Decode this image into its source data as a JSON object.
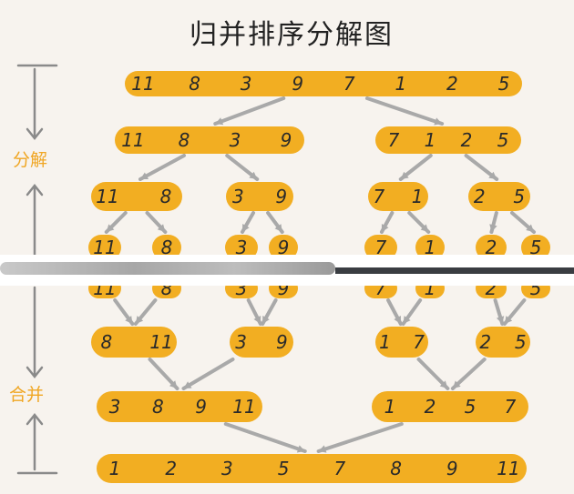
{
  "title": "归并排序分解图",
  "phases": {
    "split": "分解",
    "merge": "合并"
  },
  "colors": {
    "pill": "#f2ae22",
    "arrow": "#a9a9a9",
    "axis": "#8a8a8a",
    "background": "#f7f3ee",
    "phase_label": "#f0a623"
  },
  "levels": [
    {
      "nodes": [
        [
          "11",
          "8",
          "3",
          "9",
          "7",
          "1",
          "2",
          "5"
        ]
      ]
    },
    {
      "nodes": [
        [
          "11",
          "8",
          "3",
          "9"
        ],
        [
          "7",
          "1",
          "2",
          "5"
        ]
      ]
    },
    {
      "nodes": [
        [
          "11",
          "8"
        ],
        [
          "3",
          "9"
        ],
        [
          "7",
          "1"
        ],
        [
          "2",
          "5"
        ]
      ]
    },
    {
      "nodes": [
        [
          "11"
        ],
        [
          "8"
        ],
        [
          "3"
        ],
        [
          "9"
        ],
        [
          "7"
        ],
        [
          "1"
        ],
        [
          "2"
        ],
        [
          "5"
        ]
      ]
    },
    {
      "nodes": [
        [
          "11"
        ],
        [
          "8"
        ],
        [
          "3"
        ],
        [
          "9"
        ],
        [
          "7"
        ],
        [
          "1"
        ],
        [
          "2"
        ],
        [
          "5"
        ]
      ]
    },
    {
      "nodes": [
        [
          "8",
          "11"
        ],
        [
          "3",
          "9"
        ],
        [
          "1",
          "7"
        ],
        [
          "2",
          "5"
        ]
      ]
    },
    {
      "nodes": [
        [
          "3",
          "8",
          "9",
          "11"
        ],
        [
          "1",
          "2",
          "5",
          "7"
        ]
      ]
    },
    {
      "nodes": [
        [
          "1",
          "2",
          "3",
          "5",
          "7",
          "8",
          "9",
          "11"
        ]
      ]
    }
  ]
}
